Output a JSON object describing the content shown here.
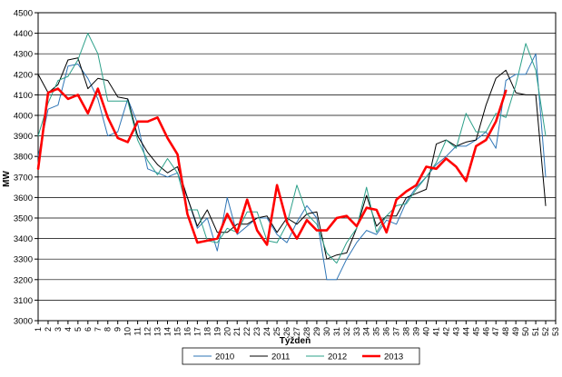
{
  "chart_data": {
    "type": "line",
    "title": "",
    "xlabel": "Týždeň",
    "ylabel": "MW",
    "ylim": [
      3000,
      4500
    ],
    "yticks": [
      3000,
      3100,
      3200,
      3300,
      3400,
      3500,
      3600,
      3700,
      3800,
      3900,
      4000,
      4100,
      4200,
      4300,
      4400,
      4500
    ],
    "xlim": [
      1,
      53
    ],
    "x": [
      1,
      2,
      3,
      4,
      5,
      6,
      7,
      8,
      9,
      10,
      11,
      12,
      13,
      14,
      15,
      16,
      17,
      18,
      19,
      20,
      21,
      22,
      23,
      24,
      25,
      26,
      27,
      28,
      29,
      30,
      31,
      32,
      33,
      34,
      35,
      36,
      37,
      38,
      39,
      40,
      41,
      42,
      43,
      44,
      45,
      46,
      47,
      48,
      49,
      50,
      51,
      52,
      53
    ],
    "grid": true,
    "legend": "bottom",
    "series": [
      {
        "name": "2010",
        "color": "#2e75b6",
        "width": 1,
        "values": [
          3800,
          4030,
          4050,
          4240,
          4250,
          4180,
          4080,
          3900,
          3920,
          4080,
          3960,
          3740,
          3720,
          3700,
          3720,
          3600,
          3450,
          3500,
          3340,
          3600,
          3420,
          3460,
          3500,
          3500,
          3420,
          3380,
          3480,
          3560,
          3500,
          3200,
          3200,
          3300,
          3380,
          3440,
          3420,
          3490,
          3470,
          3580,
          3650,
          3700,
          3760,
          3800,
          3850,
          3850,
          3880,
          3920,
          3840,
          4170,
          4200,
          4200,
          4300,
          3700,
          null
        ]
      },
      {
        "name": "2011",
        "color": "#000000",
        "width": 1,
        "values": [
          4200,
          4110,
          4150,
          4270,
          4280,
          4130,
          4180,
          4170,
          4090,
          4080,
          3900,
          3820,
          3760,
          3720,
          3750,
          3600,
          3460,
          3540,
          3430,
          3430,
          3470,
          3470,
          3500,
          3510,
          3430,
          3500,
          3470,
          3520,
          3530,
          3300,
          3320,
          3330,
          3450,
          3610,
          3460,
          3510,
          3510,
          3600,
          3620,
          3640,
          3860,
          3880,
          3850,
          3870,
          3880,
          4050,
          4180,
          4220,
          4110,
          4100,
          4100,
          3560,
          null
        ]
      },
      {
        "name": "2012",
        "color": "#2ca089",
        "width": 1,
        "values": [
          3900,
          4060,
          4170,
          4190,
          4270,
          4400,
          4300,
          4070,
          4070,
          4070,
          3880,
          3780,
          3710,
          3790,
          3720,
          3540,
          3540,
          3390,
          3380,
          3450,
          3430,
          3530,
          3530,
          3390,
          3380,
          3470,
          3660,
          3520,
          3470,
          3330,
          3280,
          3380,
          3450,
          3650,
          3430,
          3510,
          3560,
          3570,
          3640,
          3700,
          3770,
          3880,
          3840,
          4010,
          3920,
          3920,
          4010,
          3990,
          4150,
          4350,
          4220,
          3900,
          null
        ]
      },
      {
        "name": "2013",
        "color": "#ff0000",
        "width": 2.6,
        "values": [
          3740,
          4110,
          4130,
          4080,
          4100,
          4010,
          4130,
          3990,
          3890,
          3870,
          3970,
          3970,
          3990,
          3890,
          3810,
          3520,
          3380,
          3390,
          3400,
          3520,
          3430,
          3590,
          3440,
          3370,
          3660,
          3480,
          3400,
          3490,
          3440,
          3440,
          3500,
          3510,
          3460,
          3550,
          3540,
          3430,
          3590,
          3630,
          3660,
          3750,
          3740,
          3790,
          3750,
          3680,
          3850,
          3880,
          3970,
          4120,
          null,
          null,
          null,
          null,
          null
        ]
      }
    ]
  }
}
